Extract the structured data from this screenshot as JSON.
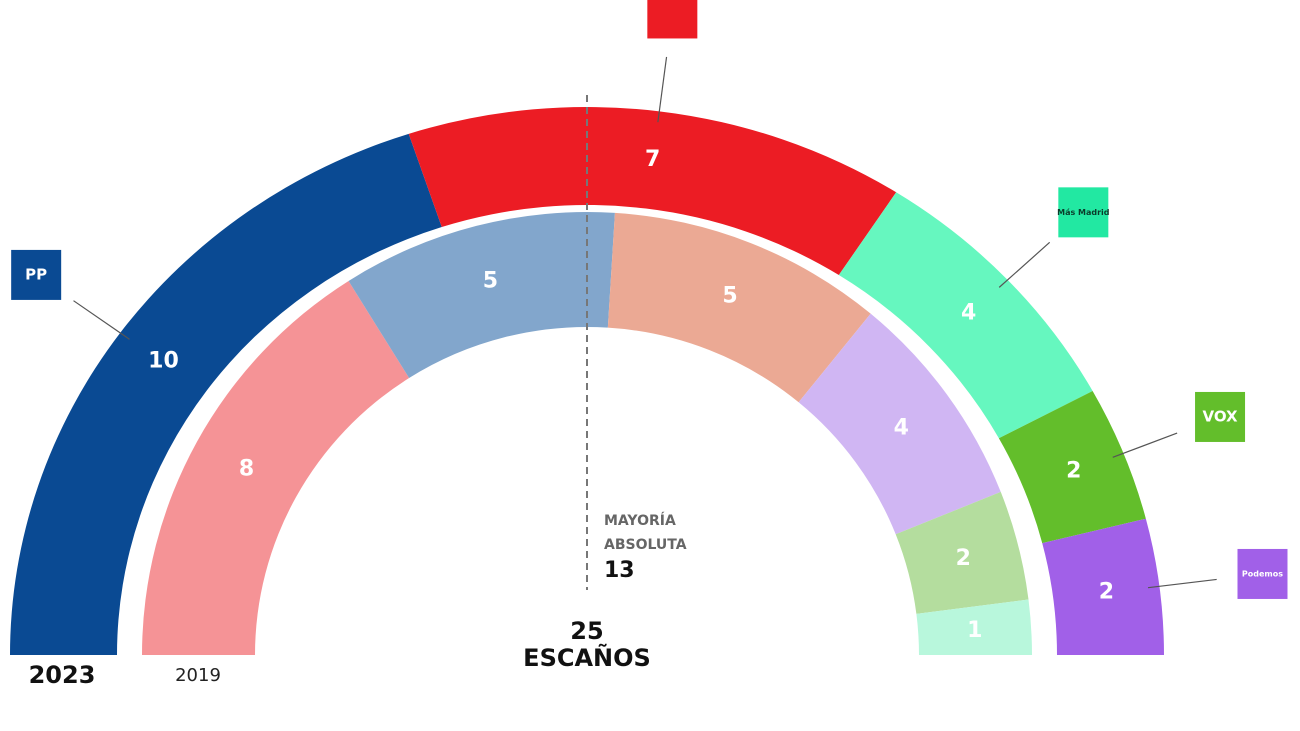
{
  "chart_data": {
    "type": "parliament",
    "total": 25,
    "total_label": "ESCAÑOS",
    "majority": 13,
    "majority_label": [
      "MAYORÍA",
      "ABSOLUTA"
    ],
    "rings": [
      {
        "label": "2023",
        "segments": [
          {
            "logo": "PP",
            "color": "#0a4a93",
            "value": 10
          },
          {
            "color": "#ec1c24",
            "value": 7
          },
          {
            "logo": "Más Madrid",
            "color": "#66f7bf",
            "value": 4
          },
          {
            "logo": "VOX",
            "color": "#63be2b",
            "value": 2
          },
          {
            "logo": "Podemos",
            "color": "#a160e8",
            "value": 2
          }
        ]
      },
      {
        "label": "2019",
        "segments": [
          {
            "color": "#f59396",
            "value": 8
          },
          {
            "color": "#82a6cc",
            "value": 5
          },
          {
            "color": "#eba994",
            "value": 5
          },
          {
            "color": "#d0b6f3",
            "value": 4
          },
          {
            "color": "#b4dd9e",
            "value": 2
          },
          {
            "color": "#b8f7dc",
            "value": 1
          }
        ]
      }
    ]
  }
}
